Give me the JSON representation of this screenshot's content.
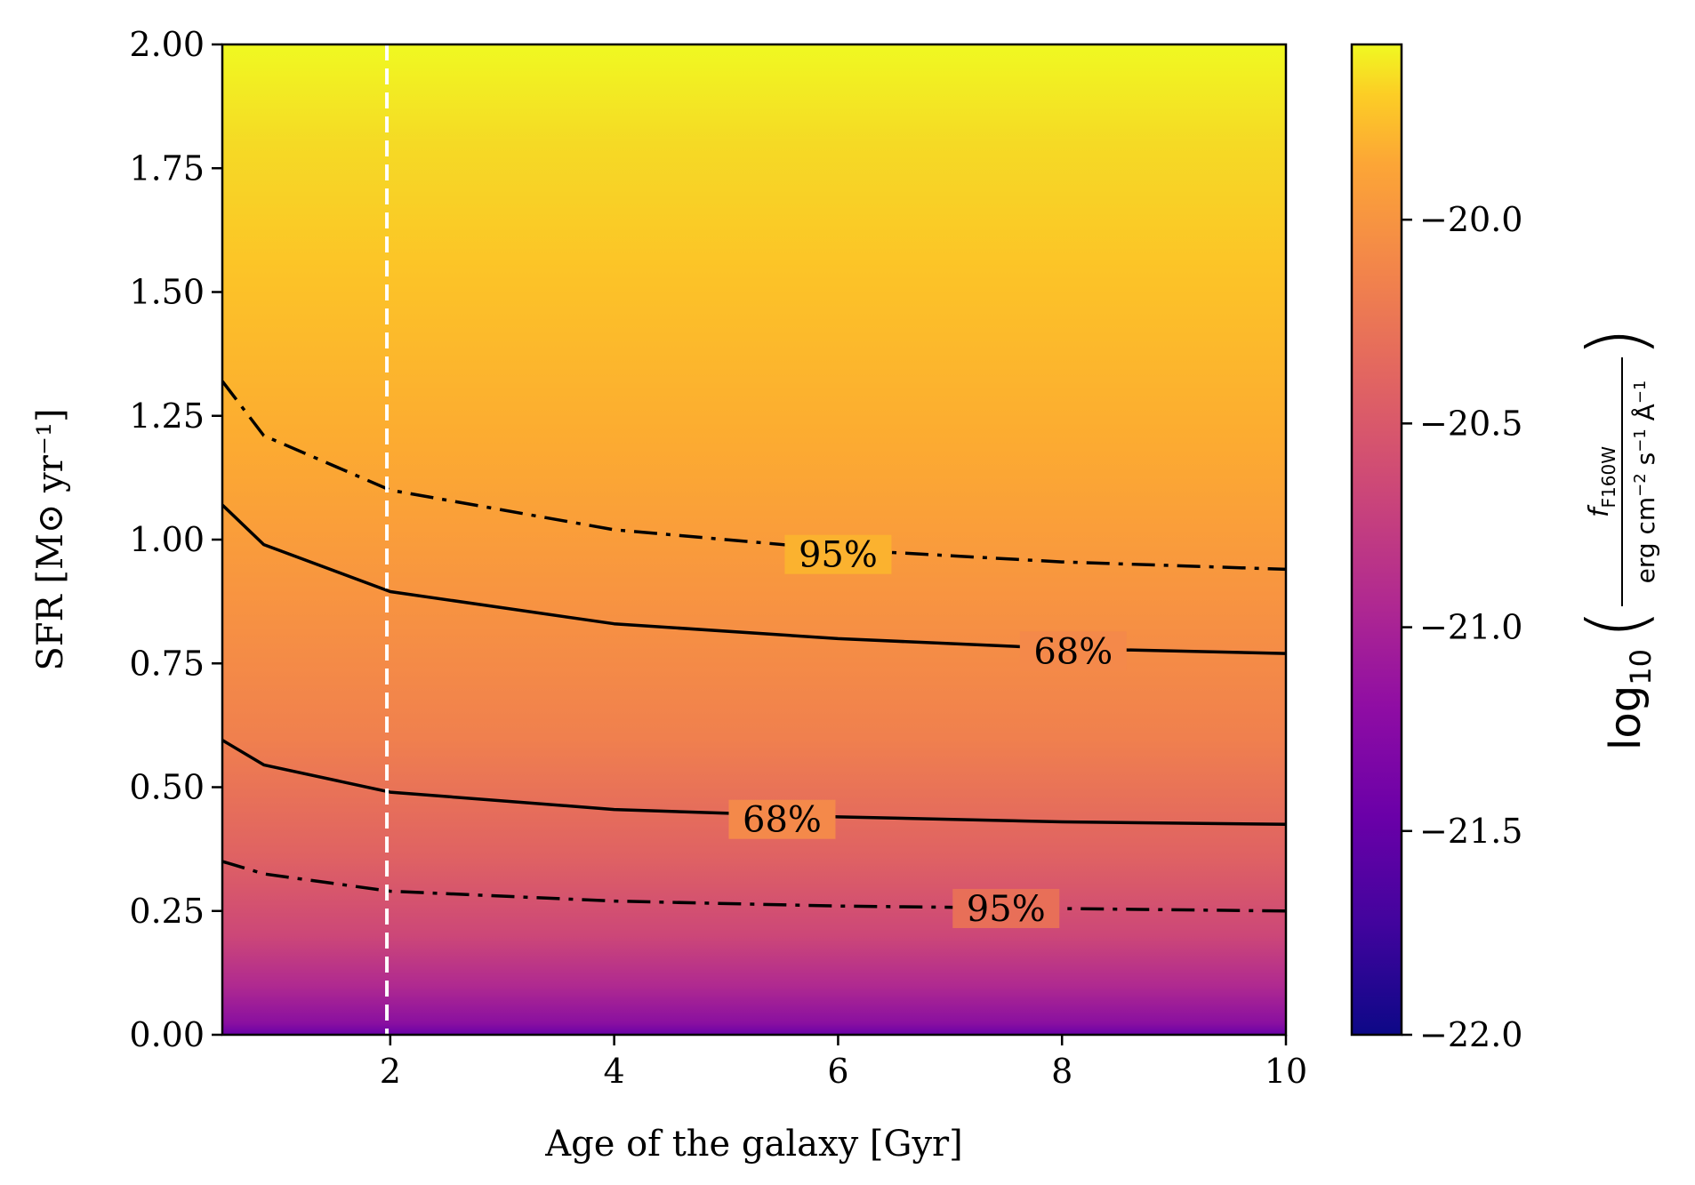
{
  "chart_data": {
    "type": "heatmap",
    "xlabel": "Age of the galaxy [Gyr]",
    "ylabel": "SFR [M⊙ yr⁻¹]",
    "xlim": [
      0.5,
      10
    ],
    "ylim": [
      0,
      2
    ],
    "x_ticks": [
      "2",
      "4",
      "6",
      "8",
      "10"
    ],
    "y_ticks": [
      "0.00",
      "0.25",
      "0.50",
      "0.75",
      "1.00",
      "1.25",
      "1.50",
      "1.75",
      "2.00"
    ],
    "colormap": "plasma",
    "colorbar": {
      "label": "log10( f_F160W / erg cm⁻² s⁻¹ Å⁻¹ )",
      "range": [
        -22.0,
        -19.57
      ],
      "ticks": [
        "−22.0",
        "−21.5",
        "−21.0",
        "−20.5",
        "−20.0"
      ]
    },
    "vertical_line": {
      "x": 1.97,
      "style": "dashed",
      "color": "#ffffff"
    },
    "contours": [
      {
        "label": "95%",
        "style": "dashdot",
        "x": [
          0.5,
          0.87,
          2,
          4,
          6,
          8,
          10
        ],
        "y": [
          1.32,
          1.21,
          1.1,
          1.02,
          0.98,
          0.955,
          0.94
        ]
      },
      {
        "label": "68%",
        "style": "solid",
        "x": [
          0.5,
          0.87,
          2,
          4,
          6,
          8,
          10
        ],
        "y": [
          1.07,
          0.99,
          0.895,
          0.83,
          0.8,
          0.78,
          0.77
        ]
      },
      {
        "label": "68%",
        "style": "solid",
        "x": [
          0.5,
          0.87,
          2,
          4,
          6,
          8,
          10
        ],
        "y": [
          0.595,
          0.545,
          0.49,
          0.455,
          0.44,
          0.43,
          0.425
        ]
      },
      {
        "label": "95%",
        "style": "dashdot",
        "x": [
          0.5,
          0.87,
          2,
          4,
          6,
          8,
          10
        ],
        "y": [
          0.35,
          0.325,
          0.29,
          0.27,
          0.26,
          0.255,
          0.25
        ]
      }
    ],
    "contour_label_positions": [
      {
        "x": 6.0,
        "y": 0.97
      },
      {
        "x": 8.1,
        "y": 0.775
      },
      {
        "x": 5.5,
        "y": 0.435
      },
      {
        "x": 7.5,
        "y": 0.255
      }
    ]
  }
}
